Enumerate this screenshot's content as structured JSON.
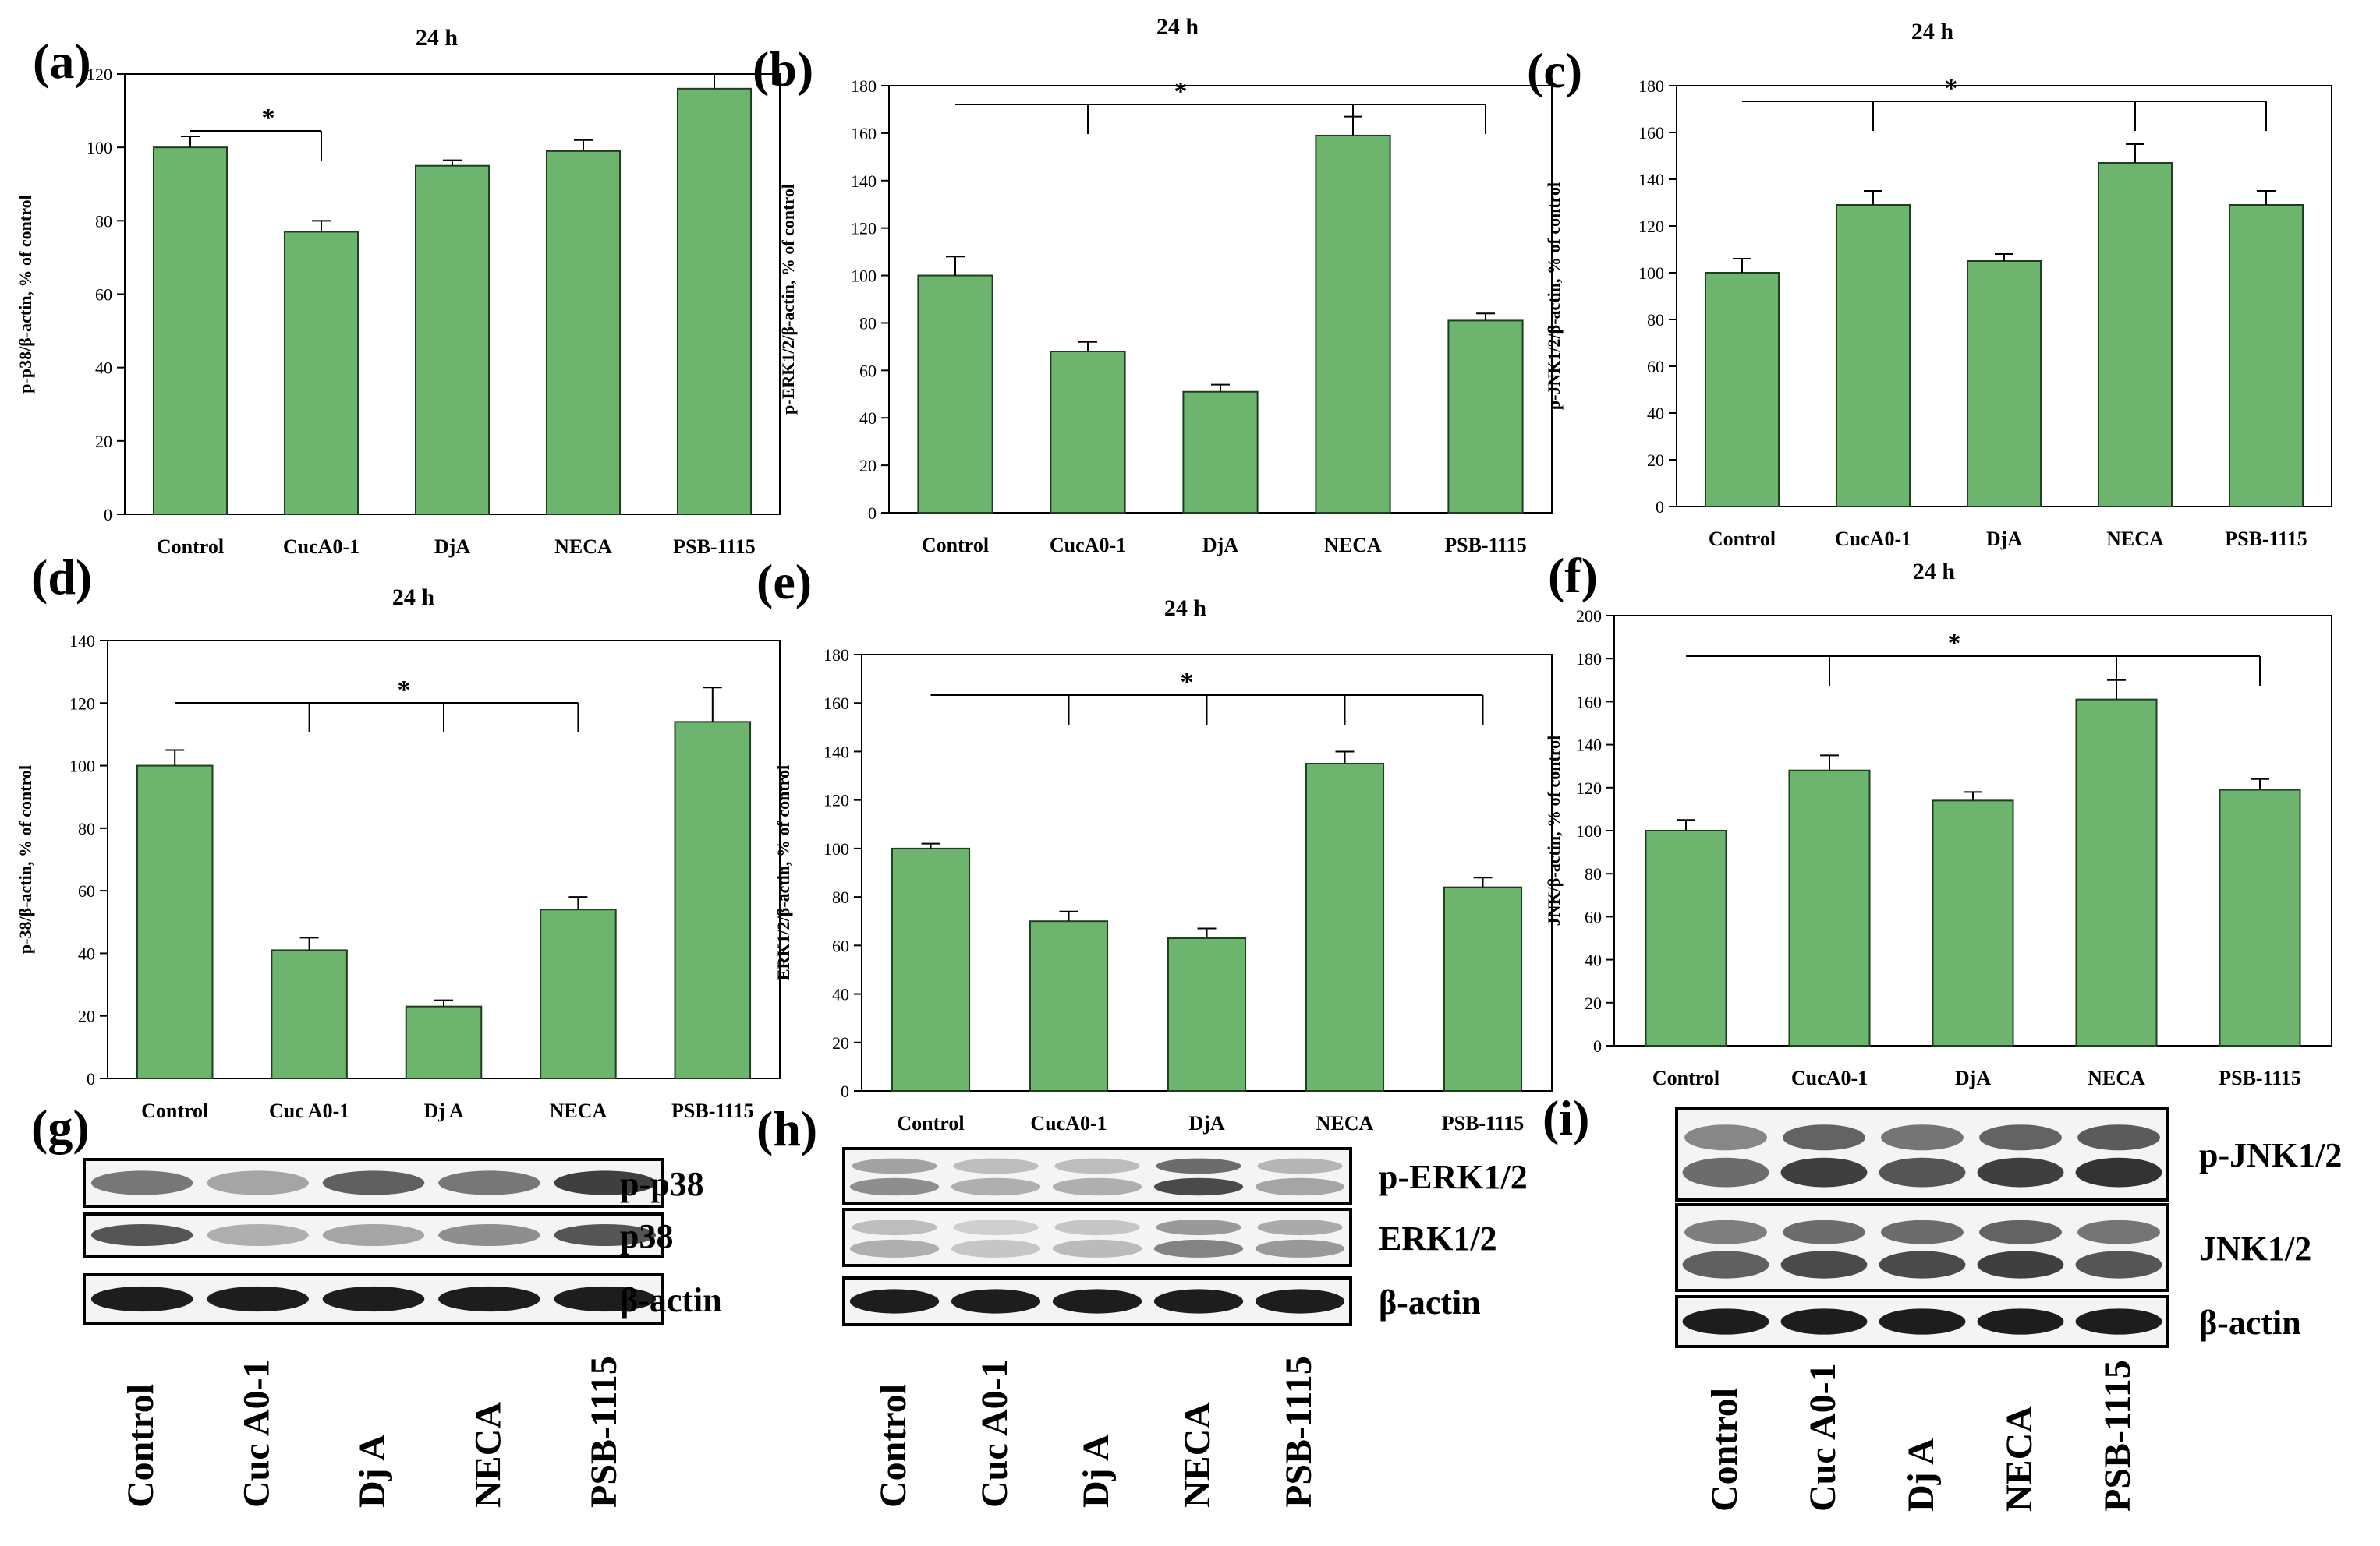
{
  "colors": {
    "bar": "#6db56e",
    "bar_edge": "#1f3d20",
    "axis": "#000000",
    "band": "#111111"
  },
  "chart_data": [
    {
      "panel": "(a)",
      "type": "bar",
      "title": "24 h",
      "ylabel": "p-p38/β-actin, % of control",
      "categories": [
        "Control",
        "CucA0-1",
        "DjA",
        "NECA",
        "PSB-1115"
      ],
      "values": [
        100,
        77,
        95,
        99,
        116
      ],
      "errors": [
        3,
        3,
        1.5,
        3,
        4
      ],
      "ylim": [
        0,
        120
      ],
      "ytick_step": 20,
      "sig": "*",
      "sig_groups": [
        0,
        1
      ]
    },
    {
      "panel": "(b)",
      "type": "bar",
      "title": "24 h",
      "ylabel": "p-ERK1/2/β-actin, % of control",
      "categories": [
        "Control",
        "CucA0-1",
        "DjA",
        "NECA",
        "PSB-1115"
      ],
      "values": [
        100,
        68,
        51,
        159,
        81
      ],
      "errors": [
        8,
        4,
        3,
        8,
        3
      ],
      "ylim": [
        0,
        180
      ],
      "ytick_step": 20,
      "sig": "*",
      "sig_groups": [
        0,
        1,
        3,
        4
      ]
    },
    {
      "panel": "(c)",
      "type": "bar",
      "title": "24 h",
      "ylabel": "p-JNK1/2/β-actin, % of control",
      "categories": [
        "Control",
        "CucA0-1",
        "DjA",
        "NECA",
        "PSB-1115"
      ],
      "values": [
        100,
        129,
        105,
        147,
        129
      ],
      "errors": [
        6,
        6,
        3,
        8,
        6
      ],
      "ylim": [
        0,
        180
      ],
      "ytick_step": 20,
      "sig": "*",
      "sig_groups": [
        0,
        1,
        3,
        4
      ]
    },
    {
      "panel": "(d)",
      "type": "bar",
      "title": "24 h",
      "ylabel": "p-38/β-actin, % of control",
      "categories": [
        "Control",
        "Cuc A0-1",
        "Dj A",
        "NECA",
        "PSB-1115"
      ],
      "values": [
        100,
        41,
        23,
        54,
        114
      ],
      "errors": [
        5,
        4,
        2,
        4,
        11
      ],
      "ylim": [
        0,
        140
      ],
      "ytick_step": 20,
      "sig": "*",
      "sig_groups": [
        0,
        1,
        2,
        3
      ]
    },
    {
      "panel": "(e)",
      "type": "bar",
      "title": "24 h",
      "ylabel": "ERK1/2/β-actin, % of control",
      "categories": [
        "Control",
        "CucA0-1",
        "DjA",
        "NECA",
        "PSB-1115"
      ],
      "values": [
        100,
        70,
        63,
        135,
        84
      ],
      "errors": [
        2,
        4,
        4,
        5,
        4
      ],
      "ylim": [
        0,
        180
      ],
      "ytick_step": 20,
      "sig": "*",
      "sig_groups": [
        0,
        1,
        2,
        3,
        4
      ]
    },
    {
      "panel": "(f)",
      "type": "bar",
      "title": "24 h",
      "ylabel": "JNK/β-actin, % of control",
      "categories": [
        "Control",
        "CucA0-1",
        "DjA",
        "NECA",
        "PSB-1115"
      ],
      "values": [
        100,
        128,
        114,
        161,
        119
      ],
      "errors": [
        5,
        7,
        4,
        9,
        5
      ],
      "ylim": [
        0,
        200
      ],
      "ytick_step": 20,
      "sig": "*",
      "sig_groups": [
        0,
        1,
        3,
        4
      ]
    }
  ],
  "blots": [
    {
      "panel": "(g)",
      "rows": [
        "p-p38",
        "p38",
        "β-actin"
      ],
      "lanes": [
        "Control",
        "Cuc A0-1",
        "Dj A",
        "NECA",
        "PSB-1115"
      ]
    },
    {
      "panel": "(h)",
      "rows": [
        "p-ERK1/2",
        "ERK1/2",
        "β-actin"
      ],
      "lanes": [
        "Control",
        "Cuc A0-1",
        "Dj A",
        "NECA",
        "PSB-1115"
      ]
    },
    {
      "panel": "(i)",
      "rows": [
        "p-JNK1/2",
        "JNK1/2",
        "β-actin"
      ],
      "lanes": [
        "Control",
        "Cuc A0-1",
        "Dj A",
        "NECA",
        "PSB-1115"
      ]
    }
  ]
}
